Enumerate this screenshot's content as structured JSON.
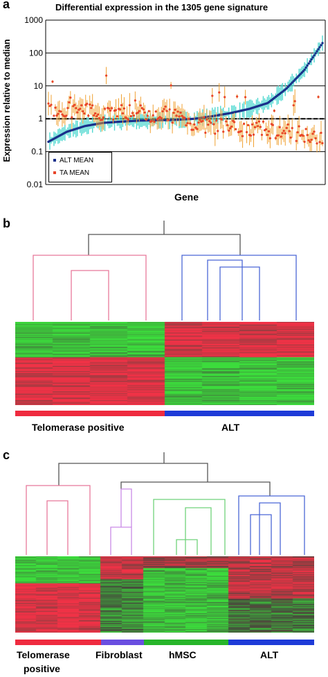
{
  "panels": {
    "a": "a",
    "b": "b",
    "c": "c"
  },
  "chart_data": {
    "type": "scatter",
    "title": "Differential expression in the 1305 gene signature",
    "xlabel": "Gene",
    "ylabel": "Expression relative to median",
    "yscale": "log",
    "ylim": [
      0.01,
      1000
    ],
    "yticks": [
      "1000",
      "100",
      "10",
      "1",
      "0.1",
      "0.01"
    ],
    "legend_position": "bottom-left",
    "series": [
      {
        "name": "ALT MEAN",
        "color": "#1a2f8a",
        "note": "sorted ascending; left half ~0.2-0.95, right half ~0.95-200",
        "values": [
          0.2,
          0.4,
          0.6,
          0.75,
          0.82,
          0.88,
          0.9,
          0.93,
          1.0,
          1.2,
          1.5,
          2.0,
          3.0,
          8.0,
          30.0,
          200.0
        ]
      },
      {
        "name": "TA MEAN",
        "color": "#e8452a",
        "note": "left half ~1-3 (above 1), right half ~0.2-1 (below 1)",
        "values": [
          2.0,
          1.8,
          1.7,
          1.6,
          1.6,
          1.5,
          1.4,
          1.3,
          0.7,
          0.6,
          0.55,
          0.5,
          0.45,
          0.4,
          0.35,
          0.3
        ]
      }
    ]
  },
  "heatmap_b": {
    "labels": [
      "Telomerase positive",
      "ALT"
    ],
    "bar_colors": [
      "#ef2b3f",
      "#1e3bd8"
    ]
  },
  "heatmap_c": {
    "labels": [
      "Telomerase\npositive",
      "Fibroblast",
      "hMSC",
      "ALT"
    ],
    "label_line1": "Telomerase",
    "label_line2": "positive",
    "label_fibroblast": "Fibroblast",
    "label_hmsc": "hMSC",
    "label_alt": "ALT",
    "bar_colors": [
      "#ef2b3f",
      "#6a4ee0",
      "#27b52a",
      "#1e3bd8"
    ]
  },
  "colors": {
    "heat_red": "#e8283c",
    "heat_green": "#2fbf3a",
    "dendro_pink": "#e8789a",
    "dendro_blue": "#4a66d6",
    "dendro_violet": "#c98ae6",
    "dendro_green": "#6fd27a",
    "dendro_gray": "#555555",
    "errorbar_cyan": "#4fd8d0",
    "errorbar_orange": "#f0a030"
  }
}
